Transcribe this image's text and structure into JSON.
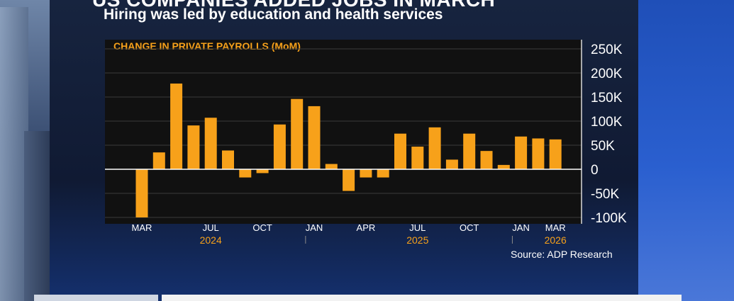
{
  "header": {
    "headline": "US COMPANIES ADDED JOBS IN MARCH",
    "subtitle": "Hiring was led by education and health services"
  },
  "source": "Source: ADP Research",
  "colors": {
    "bar": "#f7a11a",
    "year_label": "#f7a11a",
    "chart_title": "#f7a11a",
    "zero_line": "#ffffff",
    "text": "#ffffff",
    "plot_background": "#111111"
  },
  "chart_data": {
    "type": "bar",
    "title": "CHANGE IN PRIVATE PAYROLLS (MoM)",
    "xlabel": "",
    "ylabel": "",
    "ylim": [
      -100000,
      250000
    ],
    "yticks": [
      {
        "value": 250000,
        "label": "250K"
      },
      {
        "value": 200000,
        "label": "200K"
      },
      {
        "value": 150000,
        "label": "150K"
      },
      {
        "value": 100000,
        "label": "100K"
      },
      {
        "value": 50000,
        "label": "50K"
      },
      {
        "value": 0,
        "label": "0"
      },
      {
        "value": -50000,
        "label": "-50K"
      },
      {
        "value": -100000,
        "label": "-100K"
      }
    ],
    "grid": "horizontal",
    "categories": [
      "Mar 2024",
      "Apr 2024",
      "May 2024",
      "Jun 2024",
      "Jul 2024",
      "Aug 2024",
      "Sep 2024",
      "Oct 2024",
      "Nov 2024",
      "Dec 2024",
      "Jan 2025",
      "Feb 2025",
      "Mar 2025",
      "Apr 2025",
      "May 2025",
      "Jun 2025",
      "Jul 2025",
      "Aug 2025",
      "Sep 2025",
      "Oct 2025",
      "Nov 2025",
      "Dec 2025",
      "Jan 2026",
      "Feb 2026",
      "Mar 2026"
    ],
    "values": [
      -100000,
      35000,
      178000,
      91000,
      107000,
      39000,
      -17000,
      -8000,
      93000,
      146000,
      131000,
      11000,
      -45000,
      -17000,
      -17000,
      74000,
      47000,
      87000,
      20000,
      74000,
      38000,
      9000,
      68000,
      64000,
      62000
    ],
    "x_tick_labels": [
      {
        "index": 0,
        "label": "MAR"
      },
      {
        "index": 4,
        "label": "JUL"
      },
      {
        "index": 7,
        "label": "OCT"
      },
      {
        "index": 10,
        "label": "JAN"
      },
      {
        "index": 13,
        "label": "APR"
      },
      {
        "index": 16,
        "label": "JUL"
      },
      {
        "index": 19,
        "label": "OCT"
      },
      {
        "index": 22,
        "label": "JAN"
      },
      {
        "index": 24,
        "label": "MAR"
      }
    ],
    "year_labels": [
      {
        "index": 4,
        "label": "2024"
      },
      {
        "index": 16,
        "label": "2025"
      },
      {
        "index": 24,
        "label": "2026"
      }
    ],
    "year_dividers": [
      9.5,
      21.5
    ]
  }
}
